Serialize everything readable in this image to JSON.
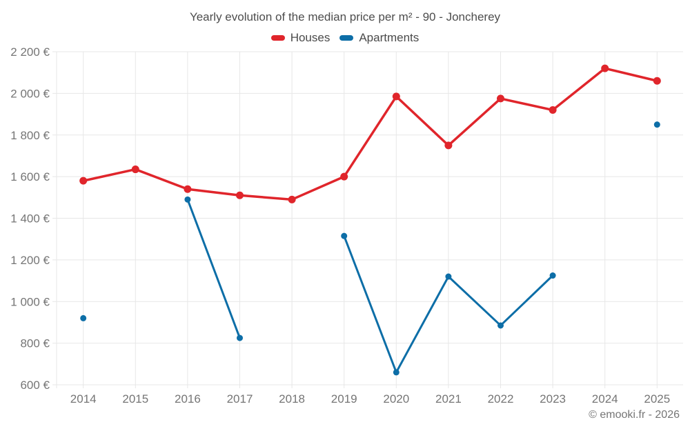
{
  "page": {
    "title": "Yearly evolution of the median price per m² - 90 - Joncherey",
    "footer": "© emooki.fr - 2026"
  },
  "legend": {
    "items": [
      {
        "id": "houses",
        "label": "Houses",
        "color": "#e0252b"
      },
      {
        "id": "apartments",
        "label": "Apartments",
        "color": "#0d6ea7"
      }
    ]
  },
  "chart_data": {
    "type": "line",
    "title": "Yearly evolution of the median price per m² - 90 - Joncherey",
    "x": [
      2014,
      2015,
      2016,
      2017,
      2018,
      2019,
      2020,
      2021,
      2022,
      2023,
      2024,
      2025
    ],
    "series": [
      {
        "name": "Houses",
        "color": "#e0252b",
        "line_width": 3.5,
        "marker_radius": 5.5,
        "values": [
          1580,
          1635,
          1540,
          1510,
          1490,
          1600,
          1985,
          1750,
          1975,
          1920,
          2120,
          2060
        ]
      },
      {
        "name": "Apartments",
        "color": "#0d6ea7",
        "line_width": 3,
        "marker_radius": 4.5,
        "values": [
          920,
          null,
          1490,
          825,
          null,
          1315,
          660,
          1120,
          885,
          1125,
          null,
          1850
        ]
      }
    ],
    "xlabel": "",
    "ylabel": "",
    "ylim": [
      600,
      2200
    ],
    "ytick_step": 200,
    "ytick_suffix": " €",
    "grid": true,
    "legend_position": "top"
  },
  "style": {
    "background": "#ffffff",
    "grid_color": "#e7e7e7",
    "tick_text_color": "#757575",
    "title_color": "#4d4d4d",
    "legend_text_color": "#4a4a4a",
    "footer_color": "#757575"
  }
}
